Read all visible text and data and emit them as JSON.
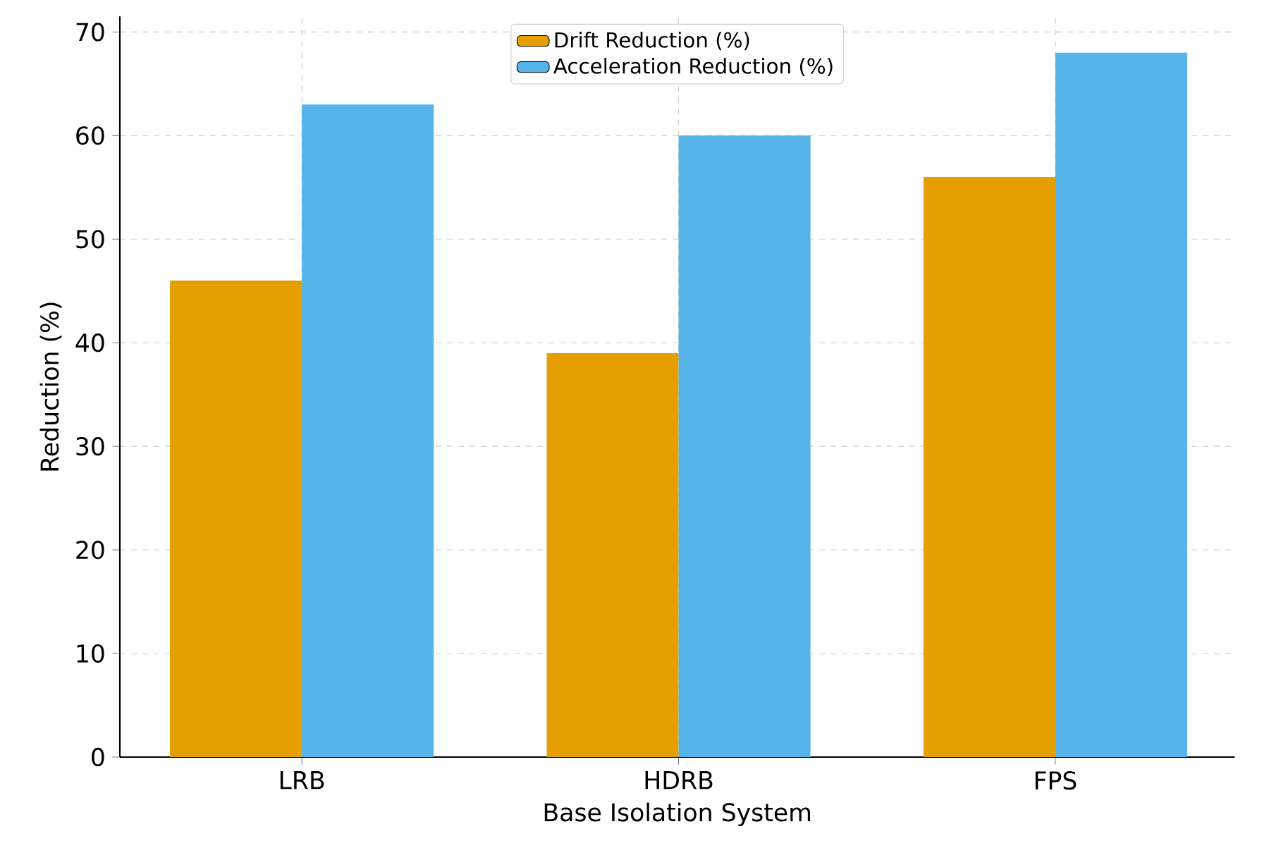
{
  "chart_data": {
    "type": "bar",
    "xlabel": "Base Isolation System",
    "ylabel": "Reduction (%)",
    "categories": [
      "LRB",
      "HDRB",
      "FPS"
    ],
    "series": [
      {
        "name": "Drift Reduction (%)",
        "color": "#e69f00",
        "values": [
          46,
          39,
          56
        ]
      },
      {
        "name": "Acceleration Reduction (%)",
        "color": "#56b4e9",
        "values": [
          63,
          60,
          68
        ]
      }
    ],
    "ylim": [
      0,
      71.5
    ],
    "yticks": [
      0,
      10,
      20,
      30,
      40,
      50,
      60,
      70
    ],
    "grid": true,
    "legend": "top"
  }
}
